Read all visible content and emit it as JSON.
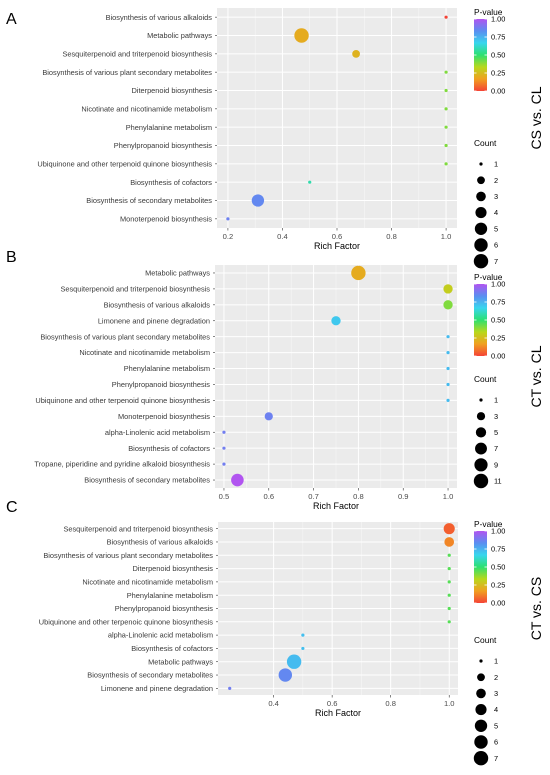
{
  "colorscale": {
    "stops": [
      "#f44336",
      "#f0a020",
      "#b8d81c",
      "#2de070",
      "#38d6ee",
      "#5a8ef0",
      "#b154f0"
    ]
  },
  "chart_data": [
    {
      "type": "scatter",
      "panel_label": "A",
      "comparison": "CS vs. CL",
      "xlabel": "Rich Factor",
      "xlim": [
        0.16,
        1.04
      ],
      "xticks": [
        0.2,
        0.4,
        0.6,
        0.8,
        1.0
      ],
      "xtick_labels": [
        "0.2",
        "0.4",
        "0.6",
        "0.8",
        "1.0"
      ],
      "color_legend_title": "P-value",
      "color_ticks": [
        "1.00",
        "0.75",
        "0.50",
        "0.25",
        "0.00"
      ],
      "size_legend_title": "Count",
      "size_legend": [
        1,
        2,
        3,
        4,
        5,
        6,
        7
      ],
      "size_max": 7,
      "grid": true,
      "categories": [
        "Biosynthesis of various alkaloids",
        "Metabolic pathways",
        "Sesquiterpenoid and triterpenoid biosynthesis",
        "Biosynthesis of various plant secondary metabolites",
        "Diterpenoid biosynthesis",
        "Nicotinate and nicotinamide metabolism",
        "Phenylalanine metabolism",
        "Phenylpropanoid biosynthesis",
        "Ubiquinone and other terpenoid quinone biosynthesis",
        "Biosynthesis of cofactors",
        "Biosynthesis of secondary metabolites",
        "Monoterpenoid biosynthesis"
      ],
      "points": [
        {
          "rich_factor": 1.0,
          "count": 1,
          "p_value": 0.0
        },
        {
          "rich_factor": 0.47,
          "count": 7,
          "p_value": 0.2
        },
        {
          "rich_factor": 0.67,
          "count": 2,
          "p_value": 0.22
        },
        {
          "rich_factor": 1.0,
          "count": 1,
          "p_value": 0.4
        },
        {
          "rich_factor": 1.0,
          "count": 1,
          "p_value": 0.4
        },
        {
          "rich_factor": 1.0,
          "count": 1,
          "p_value": 0.4
        },
        {
          "rich_factor": 1.0,
          "count": 1,
          "p_value": 0.4
        },
        {
          "rich_factor": 1.0,
          "count": 1,
          "p_value": 0.4
        },
        {
          "rich_factor": 1.0,
          "count": 1,
          "p_value": 0.4
        },
        {
          "rich_factor": 0.5,
          "count": 1,
          "p_value": 0.58
        },
        {
          "rich_factor": 0.31,
          "count": 5,
          "p_value": 0.85
        },
        {
          "rich_factor": 0.2,
          "count": 1,
          "p_value": 0.87
        }
      ]
    },
    {
      "type": "scatter",
      "panel_label": "B",
      "comparison": "CT vs. CL",
      "xlabel": "Rich Factor",
      "xlim": [
        0.48,
        1.02
      ],
      "xticks": [
        0.5,
        0.6,
        0.7,
        0.8,
        0.9,
        1.0
      ],
      "xtick_labels": [
        "0.5",
        "0.6",
        "0.7",
        "0.8",
        "0.9",
        "1.0"
      ],
      "color_legend_title": "P-value",
      "color_ticks": [
        "1.00",
        "0.75",
        "0.50",
        "0.25",
        "0.00"
      ],
      "size_legend_title": "Count",
      "size_legend": [
        1,
        3,
        5,
        7,
        9,
        11
      ],
      "size_max": 11,
      "grid": true,
      "categories": [
        "Metabolic pathways",
        "Sesquiterpenoid and triterpenoid biosynthesis",
        "Biosynthesis of various alkaloids",
        "Limonene and pinene degradation",
        "Biosynthesis of various plant secondary metabolites",
        "Nicotinate and nicotinamide metabolism",
        "Phenylalanine metabolism",
        "Phenylpropanoid biosynthesis",
        "Ubiquinone and other terpenoid quinone biosynthesis",
        "Monoterpenoid biosynthesis",
        "alpha-Linolenic acid metabolism",
        "Biosynthesis of cofactors",
        "Tropane, piperidine and pyridine alkaloid biosynthesis",
        "Biosynthesis of secondary metabolites"
      ],
      "points": [
        {
          "rich_factor": 0.8,
          "count": 11,
          "p_value": 0.2
        },
        {
          "rich_factor": 1.0,
          "count": 4,
          "p_value": 0.3
        },
        {
          "rich_factor": 1.0,
          "count": 4,
          "p_value": 0.4
        },
        {
          "rich_factor": 0.75,
          "count": 4,
          "p_value": 0.7
        },
        {
          "rich_factor": 1.0,
          "count": 1,
          "p_value": 0.73
        },
        {
          "rich_factor": 1.0,
          "count": 1,
          "p_value": 0.73
        },
        {
          "rich_factor": 1.0,
          "count": 1,
          "p_value": 0.73
        },
        {
          "rich_factor": 1.0,
          "count": 1,
          "p_value": 0.73
        },
        {
          "rich_factor": 1.0,
          "count": 1,
          "p_value": 0.73
        },
        {
          "rich_factor": 0.6,
          "count": 3,
          "p_value": 0.87
        },
        {
          "rich_factor": 0.5,
          "count": 1,
          "p_value": 0.88
        },
        {
          "rich_factor": 0.5,
          "count": 1,
          "p_value": 0.88
        },
        {
          "rich_factor": 0.5,
          "count": 1,
          "p_value": 0.88
        },
        {
          "rich_factor": 0.53,
          "count": 8,
          "p_value": 1.0
        }
      ]
    },
    {
      "type": "scatter",
      "panel_label": "C",
      "comparison": "CT vs. CS",
      "xlabel": "Rich Factor",
      "xlim": [
        0.21,
        1.03
      ],
      "xticks": [
        0.4,
        0.6,
        0.8,
        1.0
      ],
      "xtick_labels": [
        "0.4",
        "0.6",
        "0.8",
        "1.0"
      ],
      "color_legend_title": "P-value",
      "color_ticks": [
        "1.00",
        "0.75",
        "0.50",
        "0.25",
        "0.00"
      ],
      "size_legend_title": "Count",
      "size_legend": [
        1,
        2,
        3,
        4,
        5,
        6,
        7
      ],
      "size_max": 7,
      "grid": true,
      "categories": [
        "Sesquiterpenoid and triterpenoid biosynthesis",
        "Biosynthesis of various alkaloids",
        "Biosynthesis of various plant secondary metabolites",
        "Diterpenoid biosynthesis",
        "Nicotinate and nicotinamide metabolism",
        "Phenylalanine metabolism",
        "Phenylpropanoid biosynthesis",
        "Ubiquinone and other terpenoic quinone biosynthesis",
        "alpha-Linolenic acid metabolism",
        "Biosynthesis of cofactors",
        "Metabolic pathways",
        "Biosynthesis of secondary metabolites",
        "Limonene and pinene degradation"
      ],
      "points": [
        {
          "rich_factor": 1.0,
          "count": 4,
          "p_value": 0.05
        },
        {
          "rich_factor": 1.0,
          "count": 3,
          "p_value": 0.12
        },
        {
          "rich_factor": 1.0,
          "count": 1,
          "p_value": 0.45
        },
        {
          "rich_factor": 1.0,
          "count": 1,
          "p_value": 0.45
        },
        {
          "rich_factor": 1.0,
          "count": 1,
          "p_value": 0.45
        },
        {
          "rich_factor": 1.0,
          "count": 1,
          "p_value": 0.45
        },
        {
          "rich_factor": 1.0,
          "count": 1,
          "p_value": 0.45
        },
        {
          "rich_factor": 1.0,
          "count": 1,
          "p_value": 0.45
        },
        {
          "rich_factor": 0.5,
          "count": 1,
          "p_value": 0.72
        },
        {
          "rich_factor": 0.5,
          "count": 1,
          "p_value": 0.72
        },
        {
          "rich_factor": 0.47,
          "count": 7,
          "p_value": 0.73
        },
        {
          "rich_factor": 0.44,
          "count": 6,
          "p_value": 0.85
        },
        {
          "rich_factor": 0.25,
          "count": 1,
          "p_value": 0.88
        }
      ]
    }
  ]
}
